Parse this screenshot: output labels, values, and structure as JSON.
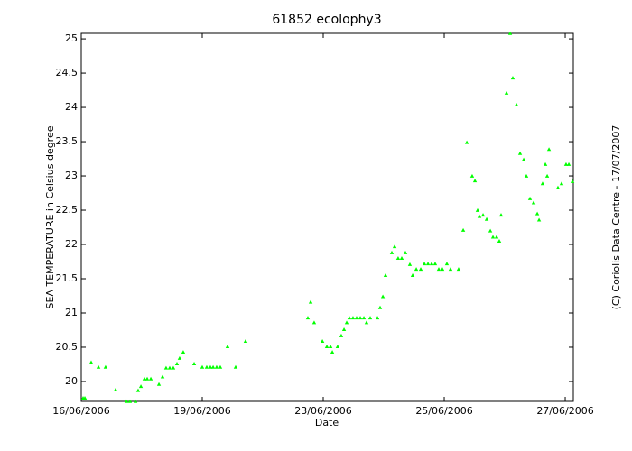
{
  "chart_data": {
    "type": "scatter",
    "title": "61852 ecolophy3",
    "x_label": "Date",
    "y_label": "SEA TEMPERATURE in Celsius degree",
    "annotation": "(C) Coriolis Data Centre - 17/07/2007",
    "xlim": [
      0,
      4.067
    ],
    "xticks": [
      {
        "value": 0,
        "label": "16/06/2006"
      },
      {
        "value": 1,
        "label": "19/06/2006"
      },
      {
        "value": 2,
        "label": "23/06/2006"
      },
      {
        "value": 3,
        "label": "25/06/2006"
      },
      {
        "value": 4,
        "label": "27/06/2006"
      }
    ],
    "ylim": [
      19.71,
      25.08
    ],
    "yticks": [
      20,
      20.5,
      21,
      21.5,
      22,
      22.5,
      23,
      23.5,
      24,
      24.5,
      25
    ],
    "color": "#00ff00",
    "x": [
      0.015,
      0.03,
      0.082,
      0.142,
      0.201,
      0.284,
      0.373,
      0.403,
      0.448,
      0.47,
      0.493,
      0.522,
      0.545,
      0.575,
      0.642,
      0.672,
      0.701,
      0.731,
      0.761,
      0.791,
      0.813,
      0.843,
      0.933,
      1.0,
      1.037,
      1.067,
      1.09,
      1.119,
      1.149,
      1.209,
      1.276,
      1.358,
      1.873,
      1.896,
      1.925,
      1.993,
      2.03,
      2.06,
      2.075,
      2.119,
      2.149,
      2.172,
      2.194,
      2.216,
      2.246,
      2.276,
      2.306,
      2.336,
      2.358,
      2.388,
      2.448,
      2.47,
      2.493,
      2.515,
      2.567,
      2.59,
      2.619,
      2.649,
      2.679,
      2.716,
      2.739,
      2.769,
      2.806,
      2.836,
      2.866,
      2.896,
      2.925,
      2.955,
      2.985,
      3.022,
      3.052,
      3.119,
      3.157,
      3.187,
      3.231,
      3.254,
      3.276,
      3.291,
      3.321,
      3.351,
      3.381,
      3.403,
      3.433,
      3.455,
      3.47,
      3.515,
      3.545,
      3.567,
      3.597,
      3.627,
      3.657,
      3.679,
      3.709,
      3.739,
      3.769,
      3.784,
      3.813,
      3.836,
      3.851,
      3.866,
      3.94,
      3.97,
      4.007,
      4.03,
      4.06
    ],
    "values": [
      19.76,
      19.76,
      20.28,
      20.21,
      20.21,
      19.88,
      19.71,
      19.71,
      19.71,
      19.87,
      19.93,
      20.04,
      20.04,
      20.04,
      19.96,
      20.07,
      20.2,
      20.2,
      20.2,
      20.26,
      20.34,
      20.43,
      20.26,
      20.21,
      20.21,
      20.21,
      20.21,
      20.21,
      20.21,
      20.51,
      20.21,
      20.59,
      20.93,
      21.16,
      20.86,
      20.59,
      20.51,
      20.51,
      20.43,
      20.51,
      20.67,
      20.76,
      20.86,
      20.93,
      20.93,
      20.93,
      20.93,
      20.93,
      20.86,
      20.93,
      20.93,
      21.08,
      21.24,
      21.55,
      21.88,
      21.97,
      21.8,
      21.8,
      21.88,
      21.71,
      21.55,
      21.64,
      21.64,
      21.72,
      21.72,
      21.72,
      21.72,
      21.64,
      21.64,
      21.72,
      21.64,
      21.64,
      22.21,
      23.49,
      23.0,
      22.93,
      22.5,
      22.41,
      22.43,
      22.37,
      22.2,
      22.11,
      22.11,
      22.05,
      22.43,
      24.21,
      25.08,
      24.43,
      24.04,
      23.33,
      23.24,
      23.0,
      22.67,
      22.61,
      22.45,
      22.36,
      22.89,
      23.17,
      23.0,
      23.39,
      22.83,
      22.89,
      23.17,
      23.17,
      22.92
    ]
  }
}
